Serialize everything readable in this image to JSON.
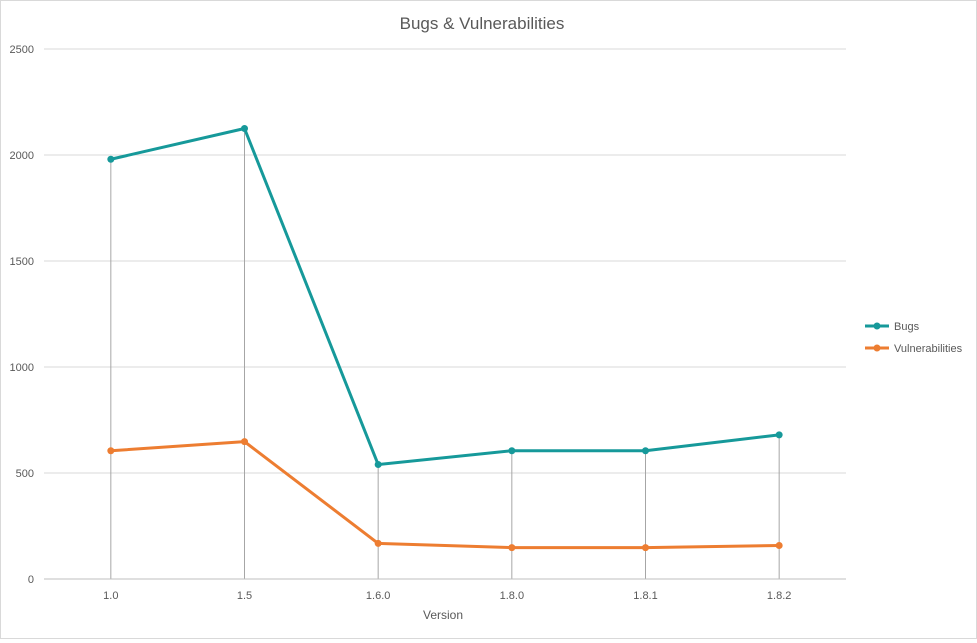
{
  "chart_data": {
    "type": "line",
    "title": "Bugs & Vulnerabilities",
    "xlabel": "Version",
    "ylabel": "",
    "categories": [
      "1.0",
      "1.5",
      "1.6.0",
      "1.8.0",
      "1.8.1",
      "1.8.2"
    ],
    "ylim": [
      0,
      2500
    ],
    "yticks": [
      0,
      500,
      1000,
      1500,
      2000,
      2500
    ],
    "grid": true,
    "drop_lines": true,
    "legend_position": "right",
    "series": [
      {
        "name": "Bugs",
        "color": "#16999a",
        "values": [
          1980,
          2125,
          540,
          605,
          605,
          680
        ]
      },
      {
        "name": "Vulnerabilities",
        "color": "#ed7d31",
        "values": [
          605,
          648,
          168,
          148,
          148,
          158
        ]
      }
    ]
  }
}
